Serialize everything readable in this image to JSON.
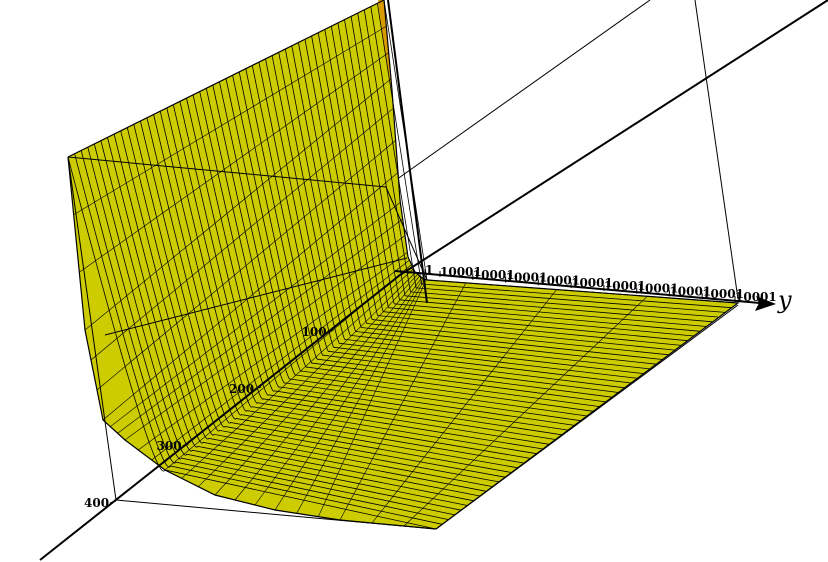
{
  "chart_data": {
    "type": "surface",
    "axes": {
      "x": {
        "ticks": [
          100,
          200,
          300,
          400
        ],
        "tick_labels": [
          "100",
          "200",
          "300",
          "400"
        ],
        "range": [
          0,
          400
        ]
      },
      "y": {
        "label": "y",
        "tick_labels": [
          "1",
          "10001",
          "10001",
          "10001",
          "10001",
          "10001",
          "10001",
          "10001",
          "10001",
          "10001",
          "10001"
        ]
      }
    },
    "surface": {
      "color": "#cccc00",
      "edge_color": "#000000",
      "highlight_color": "#d89a00",
      "mesh_x_lines": 48,
      "mesh_y_lines": 24
    },
    "box": true,
    "grid": false
  }
}
